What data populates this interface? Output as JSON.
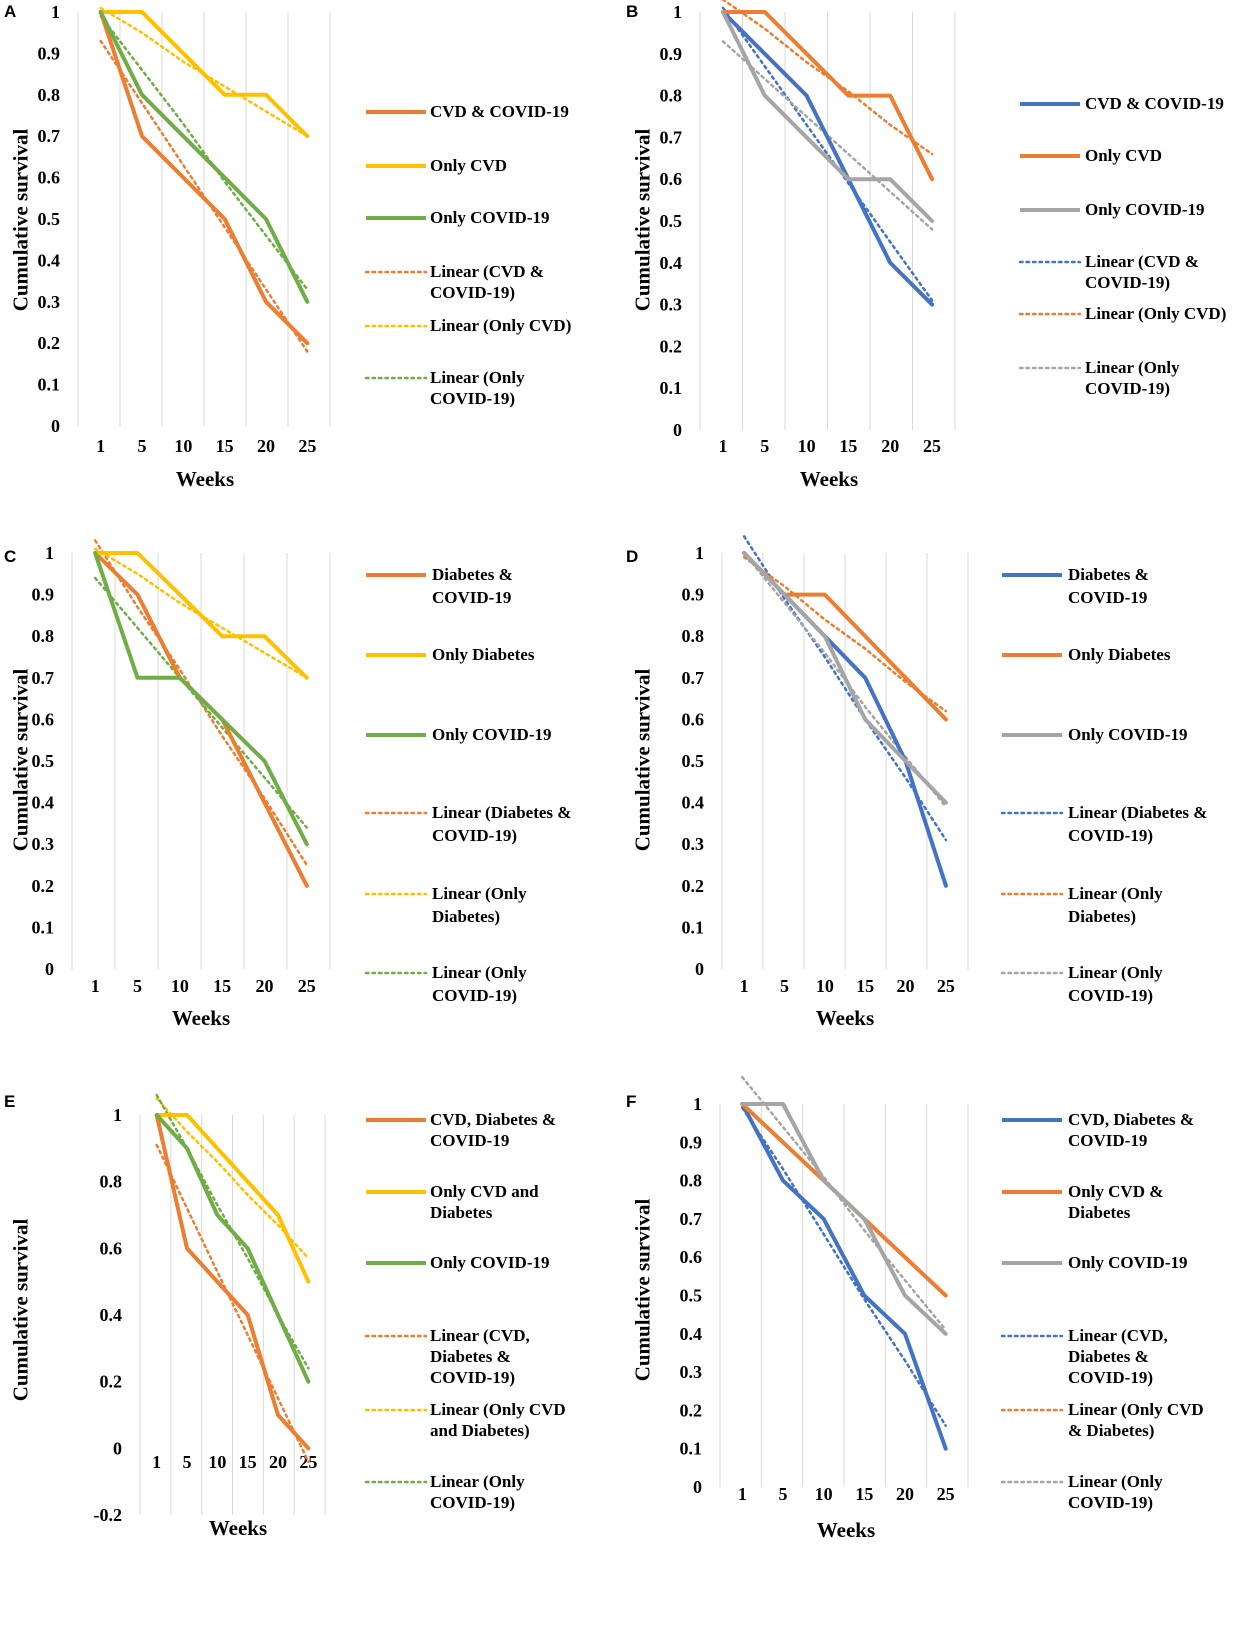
{
  "chart_data": [
    {
      "panel": "A",
      "type": "line",
      "xlabel": "Weeks",
      "ylabel": "Cumulative survival",
      "x": [
        "1",
        "5",
        "10",
        "15",
        "20",
        "25"
      ],
      "ylim": [
        0,
        1
      ],
      "yticks": [
        "0",
        "0.1",
        "0.2",
        "0.3",
        "0.4",
        "0.5",
        "0.6",
        "0.7",
        "0.8",
        "0.9",
        "1"
      ],
      "series": [
        {
          "name": "CVD & COVID-19",
          "color": "#ED7D31",
          "style": "solid",
          "values": [
            1,
            0.7,
            0.6,
            0.5,
            0.3,
            0.2
          ]
        },
        {
          "name": "Only CVD",
          "color": "#FFC000",
          "style": "solid",
          "values": [
            1,
            1,
            0.9,
            0.8,
            0.8,
            0.7
          ]
        },
        {
          "name": "Only COVID-19",
          "color": "#70AD47",
          "style": "solid",
          "values": [
            1,
            0.8,
            0.7,
            0.6,
            0.5,
            0.3
          ]
        },
        {
          "name": "Linear (CVD & COVID-19)",
          "color": "#ED7D31",
          "style": "dotted",
          "values": [
            0.93,
            0.78,
            0.63,
            0.48,
            0.33,
            0.18
          ]
        },
        {
          "name": "Linear (Only CVD)",
          "color": "#FFC000",
          "style": "dotted",
          "values": [
            1.01,
            0.95,
            0.88,
            0.82,
            0.76,
            0.7
          ]
        },
        {
          "name": "Linear (Only COVID-19)",
          "color": "#70AD47",
          "style": "dotted",
          "values": [
            0.99,
            0.86,
            0.73,
            0.59,
            0.46,
            0.33
          ]
        }
      ]
    },
    {
      "panel": "B",
      "type": "line",
      "xlabel": "Weeks",
      "ylabel": "Cumulative survival",
      "x": [
        "1",
        "5",
        "10",
        "15",
        "20",
        "25"
      ],
      "ylim": [
        0,
        1
      ],
      "yticks": [
        "0",
        "0.1",
        "0.2",
        "0.3",
        "0.4",
        "0.5",
        "0.6",
        "0.7",
        "0.8",
        "0.9",
        "1"
      ],
      "series": [
        {
          "name": "CVD & COVID-19",
          "color": "#4472C4",
          "style": "solid",
          "values": [
            1,
            0.9,
            0.8,
            0.6,
            0.4,
            0.3
          ]
        },
        {
          "name": "Only CVD",
          "color": "#ED7D31",
          "style": "solid",
          "values": [
            1,
            1,
            0.9,
            0.8,
            0.8,
            0.6
          ]
        },
        {
          "name": "Only COVID-19",
          "color": "#A5A5A5",
          "style": "solid",
          "values": [
            1,
            0.8,
            0.7,
            0.6,
            0.6,
            0.5
          ]
        },
        {
          "name": "Linear (CVD & COVID-19)",
          "color": "#4472C4",
          "style": "dotted",
          "values": [
            1.01,
            0.87,
            0.73,
            0.59,
            0.45,
            0.31
          ]
        },
        {
          "name": "Linear (Only CVD)",
          "color": "#ED7D31",
          "style": "dotted",
          "values": [
            1.03,
            0.96,
            0.88,
            0.81,
            0.73,
            0.66
          ]
        },
        {
          "name": "Linear (Only COVID-19)",
          "color": "#A5A5A5",
          "style": "dotted",
          "values": [
            0.93,
            0.84,
            0.75,
            0.66,
            0.57,
            0.48
          ]
        }
      ]
    },
    {
      "panel": "C",
      "type": "line",
      "xlabel": "Weeks",
      "ylabel": "Cumulative survival",
      "x": [
        "1",
        "5",
        "10",
        "15",
        "20",
        "25"
      ],
      "ylim": [
        0,
        1
      ],
      "yticks": [
        "0",
        "0.1",
        "0.2",
        "0.3",
        "0.4",
        "0.5",
        "0.6",
        "0.7",
        "0.8",
        "0.9",
        "1"
      ],
      "series": [
        {
          "name": "Diabetes & COVID-19",
          "color": "#ED7D31",
          "style": "solid",
          "values": [
            1,
            0.9,
            0.7,
            0.6,
            0.4,
            0.2
          ]
        },
        {
          "name": "Only Diabetes",
          "color": "#FFC000",
          "style": "solid",
          "values": [
            1,
            1,
            0.9,
            0.8,
            0.8,
            0.7
          ]
        },
        {
          "name": "Only COVID-19",
          "color": "#70AD47",
          "style": "solid",
          "values": [
            1,
            0.7,
            0.7,
            0.6,
            0.5,
            0.3
          ]
        },
        {
          "name": "Linear (Diabetes & COVID-19)",
          "color": "#ED7D31",
          "style": "dotted",
          "values": [
            1.03,
            0.87,
            0.72,
            0.56,
            0.41,
            0.25
          ]
        },
        {
          "name": "Linear (Only Diabetes)",
          "color": "#FFC000",
          "style": "dotted",
          "values": [
            1.01,
            0.95,
            0.88,
            0.82,
            0.76,
            0.7
          ]
        },
        {
          "name": "Linear (Only COVID-19)",
          "color": "#70AD47",
          "style": "dotted",
          "values": [
            0.94,
            0.82,
            0.7,
            0.58,
            0.46,
            0.34
          ]
        }
      ]
    },
    {
      "panel": "D",
      "type": "line",
      "xlabel": "Weeks",
      "ylabel": "Cumulative survival",
      "x": [
        "1",
        "5",
        "10",
        "15",
        "20",
        "25"
      ],
      "ylim": [
        0,
        1
      ],
      "yticks": [
        "0",
        "0.1",
        "0.2",
        "0.3",
        "0.4",
        "0.5",
        "0.6",
        "0.7",
        "0.8",
        "0.9",
        "1"
      ],
      "series": [
        {
          "name": "Diabetes & COVID-19",
          "color": "#4472C4",
          "style": "solid",
          "values": [
            1,
            0.9,
            0.8,
            0.7,
            0.5,
            0.2
          ]
        },
        {
          "name": "Only Diabetes",
          "color": "#ED7D31",
          "style": "solid",
          "values": [
            1,
            0.9,
            0.9,
            0.8,
            0.7,
            0.6
          ]
        },
        {
          "name": "Only COVID-19",
          "color": "#A5A5A5",
          "style": "solid",
          "values": [
            1,
            0.9,
            0.8,
            0.6,
            0.5,
            0.4
          ]
        },
        {
          "name": "Linear (Diabetes & COVID-19)",
          "color": "#4472C4",
          "style": "dotted",
          "values": [
            1.04,
            0.89,
            0.75,
            0.6,
            0.46,
            0.31
          ]
        },
        {
          "name": "Linear (Only Diabetes)",
          "color": "#ED7D31",
          "style": "dotted",
          "values": [
            0.99,
            0.92,
            0.84,
            0.77,
            0.69,
            0.62
          ]
        },
        {
          "name": "Linear (Only COVID-19)",
          "color": "#A5A5A5",
          "style": "dotted",
          "values": [
            1.0,
            0.88,
            0.76,
            0.63,
            0.51,
            0.39
          ]
        }
      ]
    },
    {
      "panel": "E",
      "type": "line",
      "xlabel": "Weeks",
      "ylabel": "Cumulative survival",
      "x": [
        "1",
        "5",
        "10",
        "15",
        "20",
        "25"
      ],
      "ylim": [
        -0.2,
        1
      ],
      "yticks": [
        "-0.2",
        "0",
        "0.2",
        "0.4",
        "0.6",
        "0.8",
        "1"
      ],
      "series": [
        {
          "name": "CVD, Diabetes & COVID-19",
          "color": "#ED7D31",
          "style": "solid",
          "values": [
            1,
            0.6,
            0.5,
            0.4,
            0.1,
            0
          ]
        },
        {
          "name": "Only CVD and Diabetes",
          "color": "#FFC000",
          "style": "solid",
          "values": [
            1,
            1,
            0.9,
            0.8,
            0.7,
            0.5
          ]
        },
        {
          "name": "Only COVID-19",
          "color": "#70AD47",
          "style": "solid",
          "values": [
            1,
            0.9,
            0.7,
            0.6,
            0.4,
            0.2
          ]
        },
        {
          "name": "Linear (CVD, Diabetes & COVID-19)",
          "color": "#ED7D31",
          "style": "dotted",
          "values": [
            0.91,
            0.72,
            0.53,
            0.34,
            0.15,
            -0.04
          ]
        },
        {
          "name": "Linear (Only CVD and Diabetes)",
          "color": "#FFC000",
          "style": "dotted",
          "values": [
            1.05,
            0.95,
            0.86,
            0.76,
            0.67,
            0.57
          ]
        },
        {
          "name": "Linear (Only COVID-19)",
          "color": "#70AD47",
          "style": "dotted",
          "values": [
            1.06,
            0.9,
            0.73,
            0.57,
            0.4,
            0.24
          ]
        }
      ]
    },
    {
      "panel": "F",
      "type": "line",
      "xlabel": "Weeks",
      "ylabel": "Cumulative survival",
      "x": [
        "1",
        "5",
        "10",
        "15",
        "20",
        "25"
      ],
      "ylim": [
        0,
        1
      ],
      "yticks": [
        "0",
        "0.1",
        "0.2",
        "0.3",
        "0.4",
        "0.5",
        "0.6",
        "0.7",
        "0.8",
        "0.9",
        "1"
      ],
      "series": [
        {
          "name": "CVD, Diabetes & COVID-19",
          "color": "#4472C4",
          "style": "solid",
          "values": [
            1,
            0.8,
            0.7,
            0.5,
            0.4,
            0.1
          ]
        },
        {
          "name": "Only CVD & Diabetes",
          "color": "#ED7D31",
          "style": "solid",
          "values": [
            1,
            0.9,
            0.8,
            0.7,
            0.6,
            0.5
          ]
        },
        {
          "name": "Only COVID-19",
          "color": "#A5A5A5",
          "style": "solid",
          "values": [
            1,
            1,
            0.8,
            0.7,
            0.5,
            0.4
          ]
        },
        {
          "name": "Linear (CVD, Diabetes & COVID-19)",
          "color": "#4472C4",
          "style": "dotted",
          "values": [
            0.99,
            0.83,
            0.66,
            0.49,
            0.33,
            0.16
          ]
        },
        {
          "name": "Linear (Only CVD & Diabetes)",
          "color": "#ED7D31",
          "style": "dotted",
          "values": [
            1.0,
            0.9,
            0.8,
            0.7,
            0.6,
            0.5
          ]
        },
        {
          "name": "Linear (Only COVID-19)",
          "color": "#A5A5A5",
          "style": "dotted",
          "values": [
            1.07,
            0.94,
            0.81,
            0.67,
            0.54,
            0.41
          ]
        }
      ]
    }
  ]
}
